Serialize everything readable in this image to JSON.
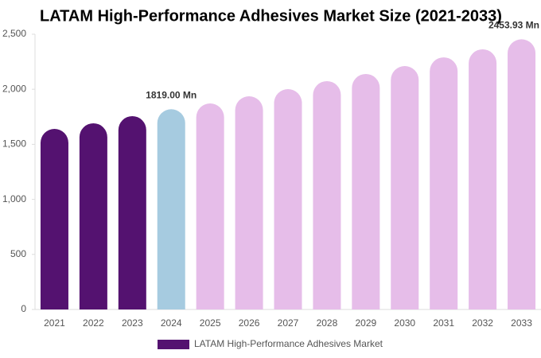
{
  "chart_data": {
    "type": "bar",
    "title": "LATAM High-Performance Adhesives Market Size (2021-2033)",
    "categories": [
      "2021",
      "2022",
      "2023",
      "2024",
      "2025",
      "2026",
      "2027",
      "2028",
      "2029",
      "2030",
      "2031",
      "2032",
      "2033"
    ],
    "series": [
      {
        "name": "LATAM High-Performance Adhesives Market",
        "color": "#541270",
        "colors": [
          "#541270",
          "#541270",
          "#541270",
          "#a6cbe0",
          "#e6bde9",
          "#e6bde9",
          "#e6bde9",
          "#e6bde9",
          "#e6bde9",
          "#e6bde9",
          "#e6bde9",
          "#e6bde9",
          "#e6bde9"
        ],
        "values": [
          1640,
          1691,
          1756,
          1819,
          1871,
          1936,
          2001,
          2074,
          2139,
          2211,
          2290,
          2363,
          2453.93
        ],
        "value_labels": [
          null,
          null,
          null,
          "1819.00 Mn",
          null,
          null,
          null,
          null,
          null,
          null,
          null,
          null,
          "2453.93 Mn"
        ]
      }
    ],
    "ylim": [
      0,
      2500
    ],
    "yticks": [
      0,
      500,
      {
        "value": 1000,
        "label": "1,000"
      },
      {
        "value": 1500,
        "label": "1,500"
      },
      {
        "value": 2000,
        "label": "2,000"
      },
      {
        "value": 2500,
        "label": "2,500"
      }
    ],
    "legend": "bottom"
  }
}
